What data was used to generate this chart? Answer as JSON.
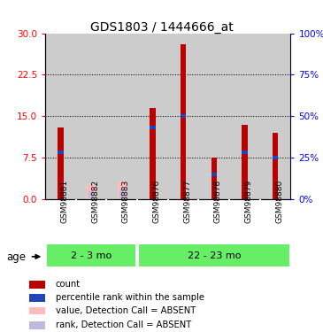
{
  "title": "GDS1803 / 1444666_at",
  "samples": [
    "GSM98881",
    "GSM98882",
    "GSM98883",
    "GSM98876",
    "GSM98877",
    "GSM98878",
    "GSM98879",
    "GSM98880"
  ],
  "red_values": [
    13.0,
    0.0,
    0.0,
    16.5,
    28.0,
    7.5,
    13.5,
    12.0
  ],
  "blue_values": [
    8.5,
    0.0,
    0.0,
    13.0,
    15.0,
    4.5,
    8.5,
    7.5
  ],
  "pink_values": [
    0.0,
    2.5,
    3.2,
    0.0,
    0.0,
    0.0,
    0.0,
    0.0
  ],
  "lavender_values": [
    0.0,
    1.5,
    1.8,
    0.0,
    0.0,
    0.0,
    0.0,
    0.0
  ],
  "ylim_left": [
    0,
    30
  ],
  "ylim_right": [
    0,
    100
  ],
  "yticks_left": [
    0,
    7.5,
    15,
    22.5,
    30
  ],
  "yticks_right": [
    0,
    25,
    50,
    75,
    100
  ],
  "red_color": "#bb0000",
  "blue_color": "#2244bb",
  "pink_color": "#ffbbbb",
  "lavender_color": "#bbbbdd",
  "group_bg_color": "#66ee66",
  "sample_bg_color": "#cccccc",
  "plot_bg_color": "#ffffff",
  "group1_label": "2 - 3 mo",
  "group2_label": "22 - 23 mo",
  "legend_items": [
    "count",
    "percentile rank within the sample",
    "value, Detection Call = ABSENT",
    "rank, Detection Call = ABSENT"
  ],
  "red_bar_width": 0.18,
  "pink_bar_width": 0.28,
  "lav_bar_width": 0.18
}
